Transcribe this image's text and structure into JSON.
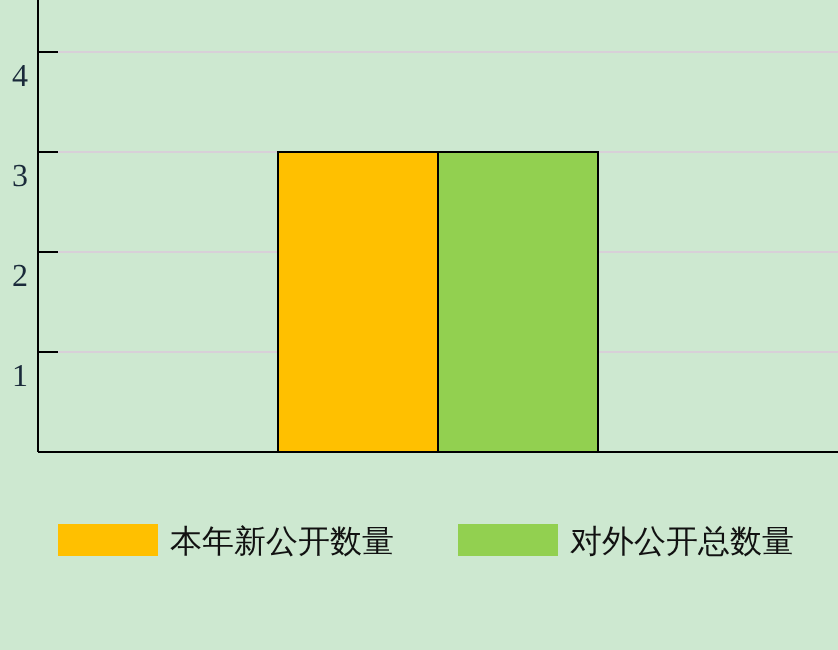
{
  "chart_data": {
    "type": "bar",
    "categories": [
      null
    ],
    "series": [
      {
        "name": "本年新公开数量",
        "color": "#ffc000",
        "values": [
          3
        ]
      },
      {
        "name": "对外公开总数量",
        "color": "#92d050",
        "values": [
          3
        ]
      }
    ],
    "ylim": [
      0,
      4.52
    ],
    "yticks": [
      1,
      2,
      3,
      4
    ],
    "grid": "y",
    "legend": "bottom"
  }
}
